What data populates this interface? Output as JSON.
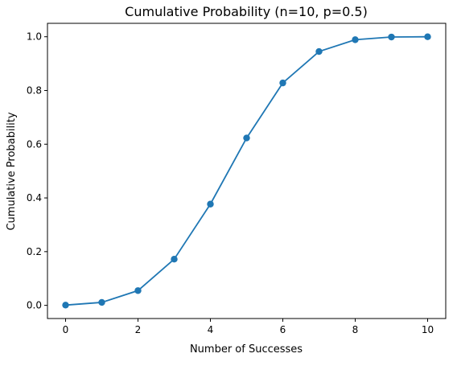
{
  "chart_data": {
    "type": "line",
    "title": "Cumulative Probability (n=10, p=0.5)",
    "xlabel": "Number of Successes",
    "ylabel": "Cumulative Probability",
    "x": [
      0,
      1,
      2,
      3,
      4,
      5,
      6,
      7,
      8,
      9,
      10
    ],
    "series": [
      {
        "values": [
          0.001,
          0.011,
          0.055,
          0.172,
          0.377,
          0.623,
          0.828,
          0.945,
          0.989,
          0.999,
          1.0
        ],
        "color": "#1f77b4",
        "marker": "circle"
      }
    ],
    "xlim": [
      -0.5,
      10.5
    ],
    "ylim": [
      -0.049,
      1.05
    ],
    "xticks": [
      0,
      2,
      4,
      6,
      8,
      10
    ],
    "xtick_labels": [
      "0",
      "2",
      "4",
      "6",
      "8",
      "10"
    ],
    "yticks": [
      0.0,
      0.2,
      0.4,
      0.6,
      0.8,
      1.0
    ],
    "ytick_labels": [
      "0.0",
      "0.2",
      "0.4",
      "0.6",
      "0.8",
      "1.0"
    ],
    "grid": false,
    "legend": false
  }
}
